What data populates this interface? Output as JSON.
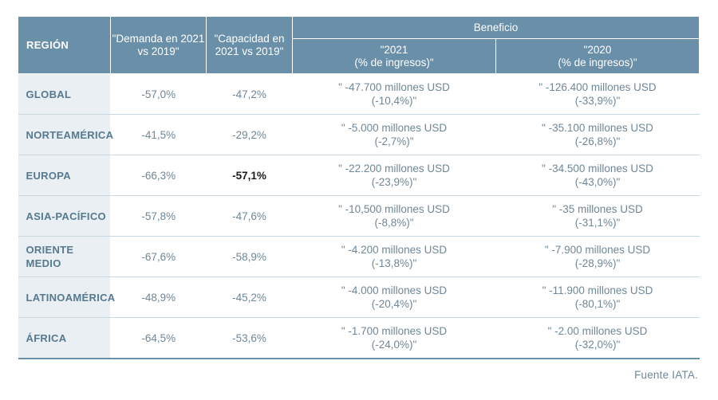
{
  "header": {
    "region": "REGIÓN",
    "demand": "\"Demanda en 2021 vs 2019\"",
    "capacity": "\"Capacidad en 2021 vs 2019\"",
    "profit": "Beneficio",
    "profit_2021_line1": "\"2021",
    "profit_2021_line2": "(% de ingresos)\"",
    "profit_2020_line1": "\"2020",
    "profit_2020_line2": "(% de ingresos)\""
  },
  "rows": [
    {
      "region": "GLOBAL",
      "demand": "-57,0%",
      "capacity": "-47,2%",
      "p2021_a": "\" -47.700 millones USD",
      "p2021_b": "(-10,4%)\"",
      "p2020_a": "\" -126.400 millones USD",
      "p2020_b": "(-33,9%)\""
    },
    {
      "region": "NORTEAMÉRICA",
      "demand": "-41,5%",
      "capacity": "-29,2%",
      "p2021_a": "\" -5.000 millones USD",
      "p2021_b": "(-2,7%)\"",
      "p2020_a": "\" -35.100 millones USD",
      "p2020_b": "(-26,8%)\""
    },
    {
      "region": "EUROPA",
      "demand": "-66,3%",
      "capacity": "-57,1%",
      "p2021_a": "\" -22.200 millones USD",
      "p2021_b": "(-23,9%)\"",
      "p2020_a": "\" -34.500 millones USD",
      "p2020_b": "(-43,0%)\""
    },
    {
      "region": "ASIA-PACÍFICO",
      "demand": "-57,8%",
      "capacity": "-47,6%",
      "p2021_a": "\" -10,500 millones USD",
      "p2021_b": "(-8,8%)\"",
      "p2020_a": "\" -35 millones USD",
      "p2020_b": "(-31,1%)\""
    },
    {
      "region": "ORIENTE MEDIO",
      "demand": "-67,6%",
      "capacity": "-58,9%",
      "p2021_a": "\" -4.200 millones USD",
      "p2021_b": "(-13,8%)\"",
      "p2020_a": "\" -7.900 millones USD",
      "p2020_b": "(-28,9%)\""
    },
    {
      "region": "LATINOAMÉRICA",
      "demand": "-48,9%",
      "capacity": "-45,2%",
      "p2021_a": "\" -4.000 millones USD",
      "p2021_b": "(-20,4%)\"",
      "p2020_a": "\" -11.900 millones USD",
      "p2020_b": "(-80,1%)\""
    },
    {
      "region": "ÁFRICA",
      "demand": "-64,5%",
      "capacity": "-53,6%",
      "p2021_a": "\" -1.700 millones USD",
      "p2021_b": "(-24,0%)\"",
      "p2020_a": "\" -2.00 millones USD",
      "p2020_b": "(-32,0%)\""
    }
  ],
  "source": "Fuente IATA.",
  "colors": {
    "header_bg": "#6a8fa8",
    "region_bg": "#e9eff3",
    "text": "#6f8796",
    "highlight_text": "#1a1a1a"
  }
}
